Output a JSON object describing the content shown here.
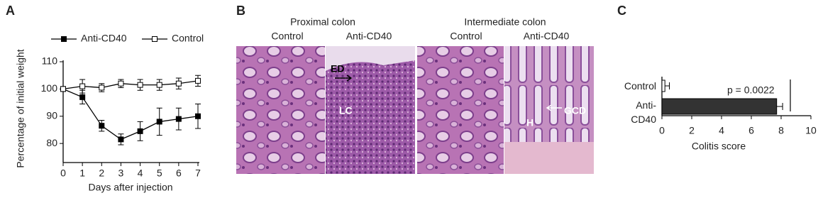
{
  "chart_data": [
    {
      "type": "line",
      "panel": "A",
      "x": [
        0,
        1,
        2,
        3,
        4,
        5,
        6,
        7
      ],
      "series": [
        {
          "name": "Anti-CD40",
          "color": "#000000",
          "marker": "filled",
          "values": [
            100,
            97,
            86.5,
            81.5,
            84.5,
            88,
            89,
            90
          ],
          "errors": [
            0,
            2.5,
            2,
            2,
            3.5,
            5,
            4,
            4.5
          ]
        },
        {
          "name": "Control",
          "color": "#000000",
          "marker": "open",
          "values": [
            100,
            101,
            100.5,
            102,
            101.5,
            101.5,
            102,
            103
          ],
          "errors": [
            0,
            2.5,
            1.5,
            1.5,
            2,
            2,
            2,
            2
          ]
        }
      ],
      "xlim": [
        0,
        7
      ],
      "xticks": [
        0,
        1,
        2,
        3,
        4,
        5,
        6,
        7
      ],
      "ylim": [
        73,
        110
      ],
      "yticks": [
        80,
        90,
        100,
        110
      ],
      "xlabel": "Days after injection",
      "ylabel": "Percentage of initial weight",
      "legend": "top"
    },
    {
      "type": "hbar",
      "panel": "C",
      "categories": [
        "Control",
        "Anti-\nCD40"
      ],
      "values": [
        0.2,
        7.7
      ],
      "errors": [
        0.3,
        0.4
      ],
      "colors": [
        "#ffffff",
        "#333333"
      ],
      "xlim": [
        0,
        10
      ],
      "xticks": [
        0,
        2,
        4,
        6,
        8,
        10
      ],
      "xlabel": "Colitis score",
      "annotation": "p = 0.0022"
    }
  ],
  "histology": {
    "panel": "B",
    "regions": [
      {
        "title": "Proximal colon",
        "columns": [
          "Control",
          "Anti-CD40"
        ]
      },
      {
        "title": "Intermediate colon",
        "columns": [
          "Control",
          "Anti-CD40"
        ]
      }
    ],
    "annotations": [
      "ED",
      "LC",
      "GCD",
      "H"
    ]
  }
}
